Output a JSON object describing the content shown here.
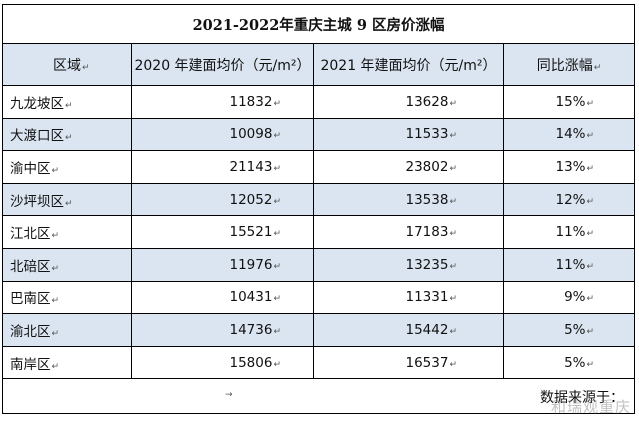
{
  "table": {
    "title": "2021-2022年重庆主城 9 区房价涨幅",
    "headers": [
      "区域",
      "2020 年建面均价（元/m²）",
      "2021 年建面均价（元/m²）",
      "同比涨幅"
    ],
    "rows": [
      {
        "district": "九龙坡区",
        "price_2020": "11832",
        "price_2021": "13628",
        "growth": "15%"
      },
      {
        "district": "大渡口区",
        "price_2020": "10098",
        "price_2021": "11533",
        "growth": "14%"
      },
      {
        "district": "渝中区",
        "price_2020": "21143",
        "price_2021": "23802",
        "growth": "13%"
      },
      {
        "district": "沙坪坝区",
        "price_2020": "12052",
        "price_2021": "13538",
        "growth": "12%"
      },
      {
        "district": "江北区",
        "price_2020": "15521",
        "price_2021": "17183",
        "growth": "11%"
      },
      {
        "district": "北碚区",
        "price_2020": "11976",
        "price_2021": "13235",
        "growth": "11%"
      },
      {
        "district": "巴南区",
        "price_2020": "10431",
        "price_2021": "11331",
        "growth": "9%"
      },
      {
        "district": "渝北区",
        "price_2020": "14736",
        "price_2021": "15442",
        "growth": "5%"
      },
      {
        "district": "南岸区",
        "price_2020": "15806",
        "price_2021": "16537",
        "growth": "5%"
      }
    ],
    "source": "数据来源于：",
    "paragraph_mark": "↵",
    "arrow_mark": "→"
  },
  "watermark": "和瑞观重庆",
  "colors": {
    "header_fill": "#dbe5f1",
    "border": "#000000"
  }
}
